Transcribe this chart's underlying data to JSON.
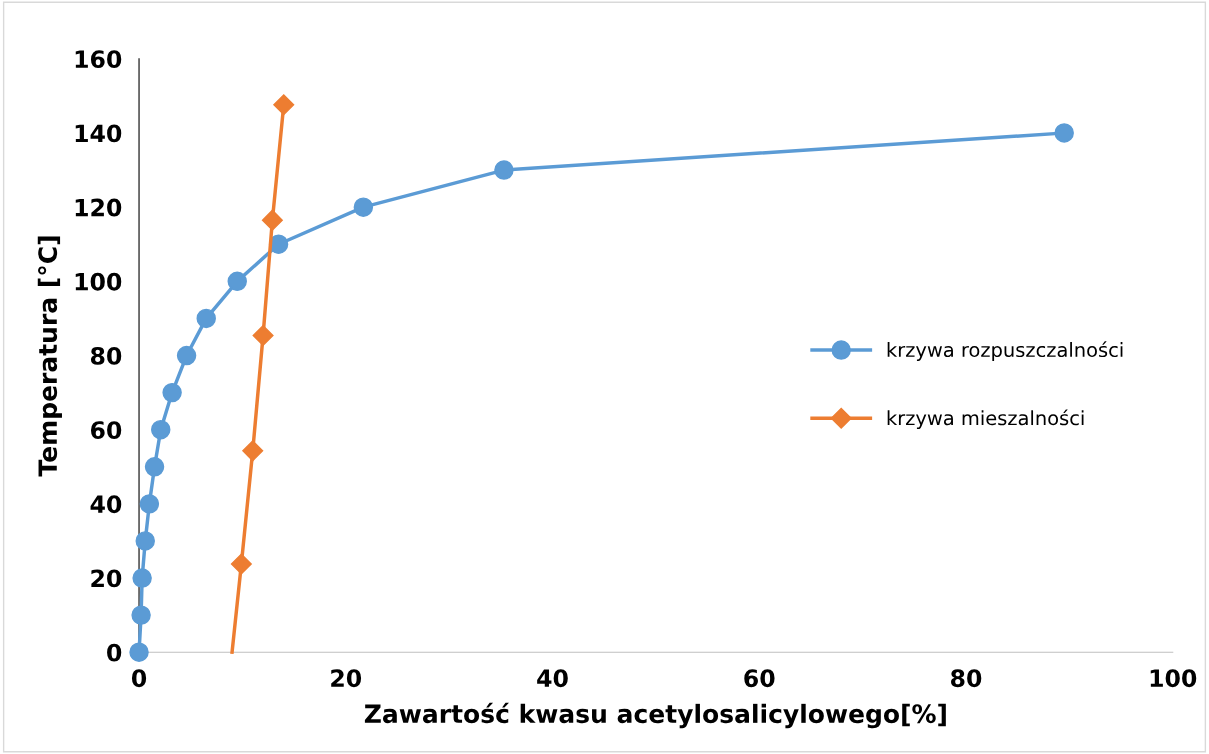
{
  "chart_data": {
    "type": "line",
    "xlabel": "Zawartość kwasu acetylosalicylowego[%]",
    "ylabel": "Temperatura [°C]",
    "xlim": [
      0,
      100
    ],
    "xticks": [
      0,
      20,
      40,
      60,
      80,
      100
    ],
    "ylim": [
      0,
      160
    ],
    "yticks": [
      0,
      20,
      40,
      60,
      80,
      100,
      120,
      140,
      160
    ],
    "grid": false,
    "legend": "right",
    "line_style": "solid",
    "series": [
      {
        "name": "krzywa rozpuszczalności",
        "color": "#5b9bd5",
        "marker": "circle",
        "x": [
          0,
          0.2,
          0.3,
          0.6,
          1.0,
          1.5,
          2.1,
          3.2,
          4.6,
          6.5,
          9.5,
          13.5,
          21.7,
          35.3,
          89.5
        ],
        "values": [
          0,
          10,
          20,
          30,
          40,
          50,
          60,
          70,
          80,
          90,
          100,
          110,
          120,
          130,
          140
        ]
      },
      {
        "name": "krzywa mieszalności",
        "color": "#ed7d31",
        "marker": "diamond",
        "x": [
          9.9,
          11.0,
          12.0,
          12.9,
          14.0
        ],
        "values": [
          23.8,
          54.3,
          85.4,
          116.5,
          147.6
        ]
      },
      {
        "color": "#ed7d31",
        "marker": "none",
        "x": [
          9.0,
          9.9
        ],
        "values": [
          0,
          23.8
        ]
      }
    ]
  }
}
